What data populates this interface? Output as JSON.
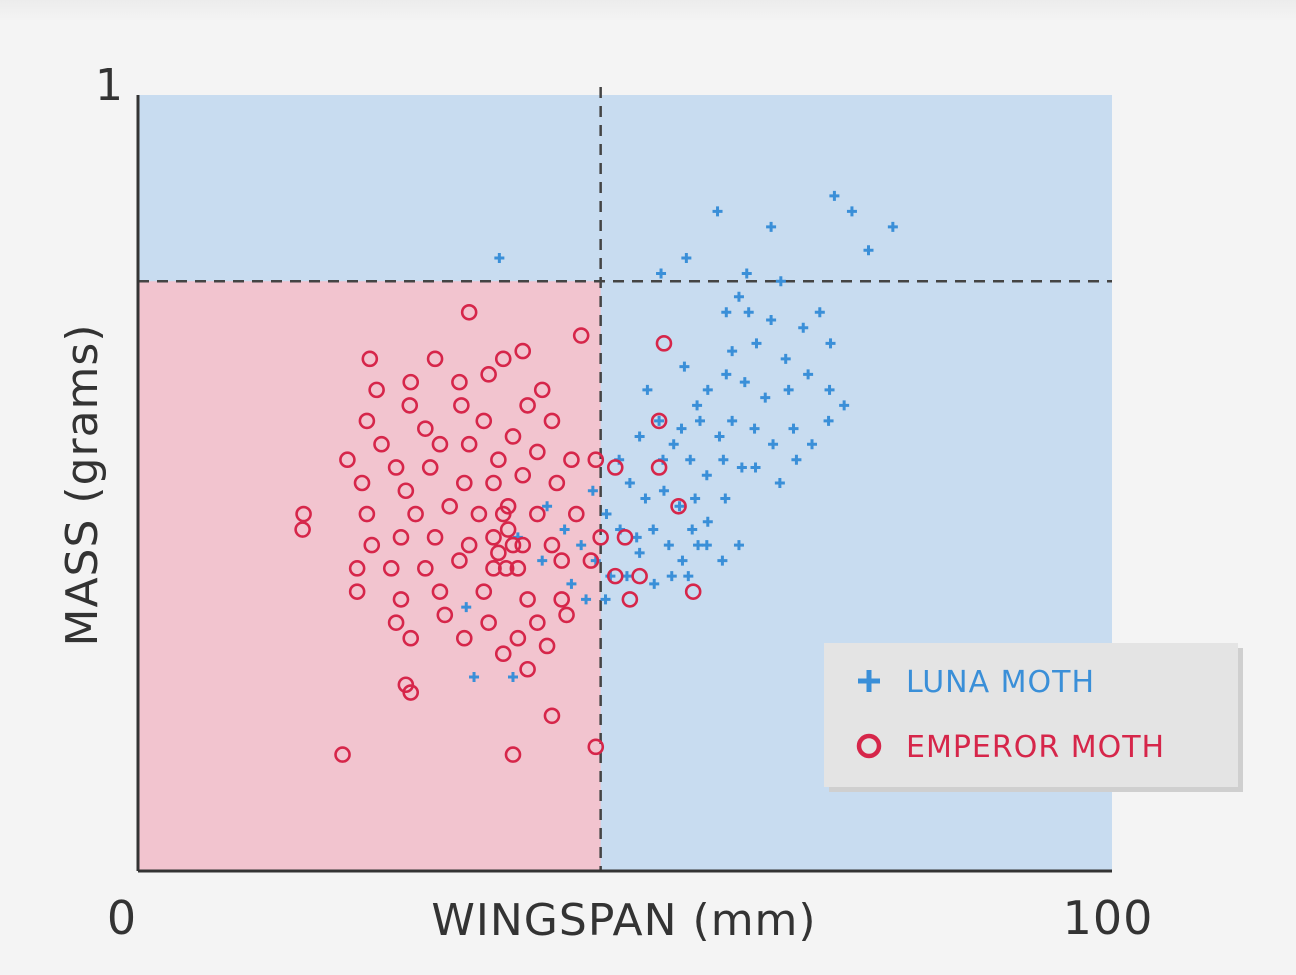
{
  "chart_data": {
    "type": "scatter",
    "xlabel": "WINGSPAN (mm)",
    "ylabel": "MASS (grams)",
    "xlim": [
      0,
      100
    ],
    "ylim": [
      0,
      1
    ],
    "x_ticks": [
      "0",
      "100"
    ],
    "y_ticks": [
      "1"
    ],
    "thresholds": {
      "x": 47.5,
      "y": 0.76
    },
    "regions": {
      "lower_left_color": "#f2c4cf",
      "other_color": "#c8dcf0"
    },
    "legend_position": "bottom-right",
    "series": [
      {
        "name": "LUNA MOTH",
        "marker": "plus",
        "color": "#3a8fd8",
        "points": [
          [
            59.5,
            0.85
          ],
          [
            71.5,
            0.87
          ],
          [
            73.3,
            0.85
          ],
          [
            65.0,
            0.83
          ],
          [
            62.5,
            0.77
          ],
          [
            56.3,
            0.79
          ],
          [
            53.7,
            0.77
          ],
          [
            77.5,
            0.83
          ],
          [
            75.0,
            0.8
          ],
          [
            66.0,
            0.76
          ],
          [
            37.1,
            0.79
          ],
          [
            61.7,
            0.74
          ],
          [
            60.4,
            0.72
          ],
          [
            62.7,
            0.72
          ],
          [
            68.3,
            0.7
          ],
          [
            65.0,
            0.71
          ],
          [
            70.0,
            0.72
          ],
          [
            71.1,
            0.68
          ],
          [
            66.5,
            0.66
          ],
          [
            63.5,
            0.68
          ],
          [
            61.0,
            0.67
          ],
          [
            60.4,
            0.64
          ],
          [
            62.3,
            0.63
          ],
          [
            64.4,
            0.61
          ],
          [
            66.8,
            0.62
          ],
          [
            68.8,
            0.64
          ],
          [
            71.0,
            0.62
          ],
          [
            56.1,
            0.65
          ],
          [
            57.4,
            0.6
          ],
          [
            58.5,
            0.62
          ],
          [
            55.8,
            0.57
          ],
          [
            57.7,
            0.58
          ],
          [
            59.7,
            0.56
          ],
          [
            61.0,
            0.58
          ],
          [
            63.3,
            0.57
          ],
          [
            65.2,
            0.55
          ],
          [
            67.3,
            0.57
          ],
          [
            52.3,
            0.62
          ],
          [
            53.5,
            0.58
          ],
          [
            51.5,
            0.56
          ],
          [
            53.9,
            0.53
          ],
          [
            55.0,
            0.55
          ],
          [
            56.7,
            0.53
          ],
          [
            58.4,
            0.51
          ],
          [
            60.1,
            0.53
          ],
          [
            62.0,
            0.52
          ],
          [
            49.4,
            0.53
          ],
          [
            50.5,
            0.5
          ],
          [
            52.1,
            0.48
          ],
          [
            54.0,
            0.49
          ],
          [
            55.6,
            0.47
          ],
          [
            57.2,
            0.48
          ],
          [
            58.5,
            0.45
          ],
          [
            60.3,
            0.48
          ],
          [
            46.7,
            0.49
          ],
          [
            48.1,
            0.46
          ],
          [
            49.5,
            0.44
          ],
          [
            51.2,
            0.43
          ],
          [
            52.9,
            0.44
          ],
          [
            54.5,
            0.42
          ],
          [
            55.9,
            0.4
          ],
          [
            57.5,
            0.42
          ],
          [
            42.0,
            0.47
          ],
          [
            43.8,
            0.44
          ],
          [
            45.5,
            0.42
          ],
          [
            47.0,
            0.4
          ],
          [
            48.5,
            0.38
          ],
          [
            50.2,
            0.38
          ],
          [
            51.5,
            0.41
          ],
          [
            53.0,
            0.37
          ],
          [
            54.8,
            0.38
          ],
          [
            56.5,
            0.38
          ],
          [
            39.0,
            0.43
          ],
          [
            41.5,
            0.4
          ],
          [
            44.5,
            0.37
          ],
          [
            46.0,
            0.35
          ],
          [
            48.0,
            0.35
          ],
          [
            34.5,
            0.25
          ],
          [
            38.5,
            0.25
          ],
          [
            33.7,
            0.34
          ],
          [
            63.4,
            0.52
          ],
          [
            65.9,
            0.5
          ],
          [
            67.6,
            0.53
          ],
          [
            69.2,
            0.55
          ],
          [
            70.9,
            0.58
          ],
          [
            72.5,
            0.6
          ],
          [
            56.9,
            0.44
          ],
          [
            58.4,
            0.42
          ],
          [
            60.0,
            0.4
          ],
          [
            61.7,
            0.42
          ]
        ]
      },
      {
        "name": "EMPEROR MOTH",
        "marker": "circle",
        "color": "#d6264a",
        "points": [
          [
            34.0,
            0.72
          ],
          [
            45.5,
            0.69
          ],
          [
            23.8,
            0.66
          ],
          [
            30.5,
            0.66
          ],
          [
            37.5,
            0.66
          ],
          [
            39.5,
            0.67
          ],
          [
            24.5,
            0.62
          ],
          [
            28.0,
            0.63
          ],
          [
            33.0,
            0.63
          ],
          [
            36.0,
            0.64
          ],
          [
            41.5,
            0.62
          ],
          [
            27.9,
            0.6
          ],
          [
            33.2,
            0.6
          ],
          [
            40.0,
            0.6
          ],
          [
            23.5,
            0.58
          ],
          [
            29.5,
            0.57
          ],
          [
            35.5,
            0.58
          ],
          [
            42.5,
            0.58
          ],
          [
            25.0,
            0.55
          ],
          [
            31.0,
            0.55
          ],
          [
            34.0,
            0.55
          ],
          [
            38.5,
            0.56
          ],
          [
            21.5,
            0.53
          ],
          [
            26.5,
            0.52
          ],
          [
            30.0,
            0.52
          ],
          [
            37.0,
            0.53
          ],
          [
            41.0,
            0.54
          ],
          [
            44.5,
            0.53
          ],
          [
            47.0,
            0.53
          ],
          [
            49.0,
            0.52
          ],
          [
            23.0,
            0.5
          ],
          [
            27.5,
            0.49
          ],
          [
            33.5,
            0.5
          ],
          [
            36.5,
            0.5
          ],
          [
            39.5,
            0.51
          ],
          [
            43.0,
            0.5
          ],
          [
            17.0,
            0.46
          ],
          [
            23.5,
            0.46
          ],
          [
            28.5,
            0.46
          ],
          [
            32.0,
            0.47
          ],
          [
            35.0,
            0.46
          ],
          [
            38.0,
            0.47
          ],
          [
            41.0,
            0.46
          ],
          [
            45.0,
            0.46
          ],
          [
            16.9,
            0.44
          ],
          [
            24.0,
            0.42
          ],
          [
            27.0,
            0.43
          ],
          [
            30.5,
            0.43
          ],
          [
            34.0,
            0.42
          ],
          [
            36.5,
            0.43
          ],
          [
            39.5,
            0.42
          ],
          [
            42.5,
            0.42
          ],
          [
            47.5,
            0.43
          ],
          [
            22.5,
            0.39
          ],
          [
            26.0,
            0.39
          ],
          [
            29.5,
            0.39
          ],
          [
            33.0,
            0.4
          ],
          [
            36.5,
            0.39
          ],
          [
            39.0,
            0.39
          ],
          [
            43.5,
            0.4
          ],
          [
            46.5,
            0.4
          ],
          [
            22.5,
            0.36
          ],
          [
            27.0,
            0.35
          ],
          [
            31.0,
            0.36
          ],
          [
            35.5,
            0.36
          ],
          [
            40.0,
            0.35
          ],
          [
            43.5,
            0.35
          ],
          [
            26.5,
            0.32
          ],
          [
            31.5,
            0.33
          ],
          [
            36.0,
            0.32
          ],
          [
            41.0,
            0.32
          ],
          [
            44.0,
            0.33
          ],
          [
            28.0,
            0.3
          ],
          [
            33.5,
            0.3
          ],
          [
            39.0,
            0.3
          ],
          [
            42.0,
            0.29
          ],
          [
            37.5,
            0.28
          ],
          [
            40.0,
            0.26
          ],
          [
            27.5,
            0.24
          ],
          [
            28.0,
            0.23
          ],
          [
            42.5,
            0.2
          ],
          [
            21.0,
            0.15
          ],
          [
            38.5,
            0.15
          ],
          [
            47.0,
            0.16
          ],
          [
            54.0,
            0.68
          ],
          [
            53.5,
            0.58
          ],
          [
            53.5,
            0.52
          ],
          [
            55.5,
            0.47
          ],
          [
            50.0,
            0.43
          ],
          [
            49.0,
            0.38
          ],
          [
            57.0,
            0.36
          ],
          [
            51.5,
            0.38
          ],
          [
            50.5,
            0.35
          ],
          [
            37.5,
            0.46
          ],
          [
            38.0,
            0.44
          ],
          [
            37.0,
            0.41
          ],
          [
            38.5,
            0.42
          ],
          [
            37.8,
            0.39
          ]
        ]
      }
    ]
  }
}
